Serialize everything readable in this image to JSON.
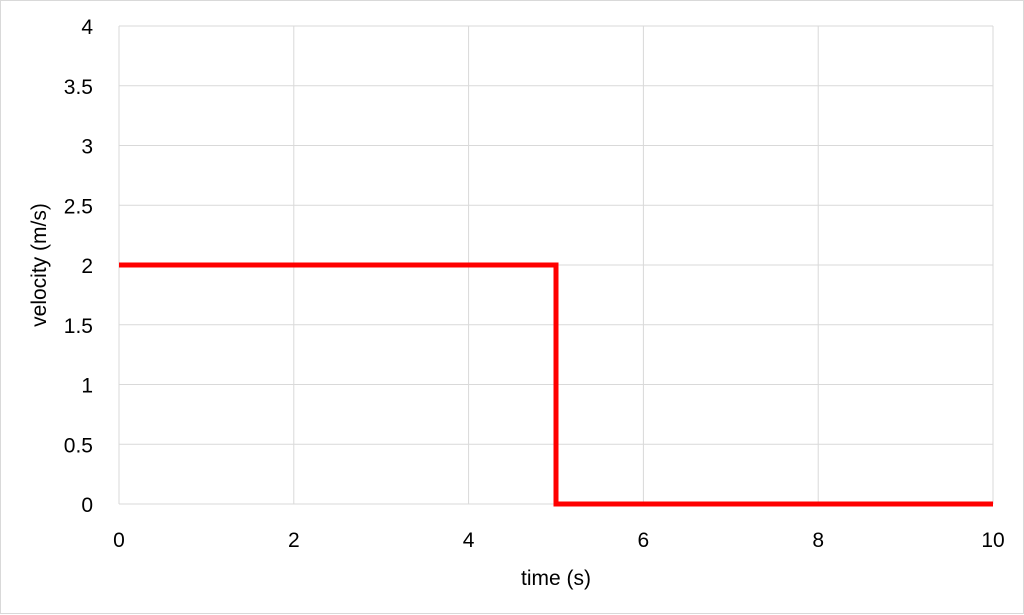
{
  "chart_data": {
    "type": "line",
    "title": "",
    "xlabel": "time (s)",
    "ylabel": "velocity (m/s)",
    "xlim": [
      0,
      10
    ],
    "ylim": [
      0,
      4
    ],
    "x_ticks": [
      0,
      2,
      4,
      6,
      8,
      10
    ],
    "y_ticks": [
      0,
      0.5,
      1,
      1.5,
      2,
      2.5,
      3,
      3.5,
      4
    ],
    "grid": true,
    "series": [
      {
        "color": "#ff0000",
        "points": [
          [
            0,
            2
          ],
          [
            5,
            2
          ],
          [
            5,
            0
          ],
          [
            10,
            0
          ]
        ]
      }
    ]
  }
}
